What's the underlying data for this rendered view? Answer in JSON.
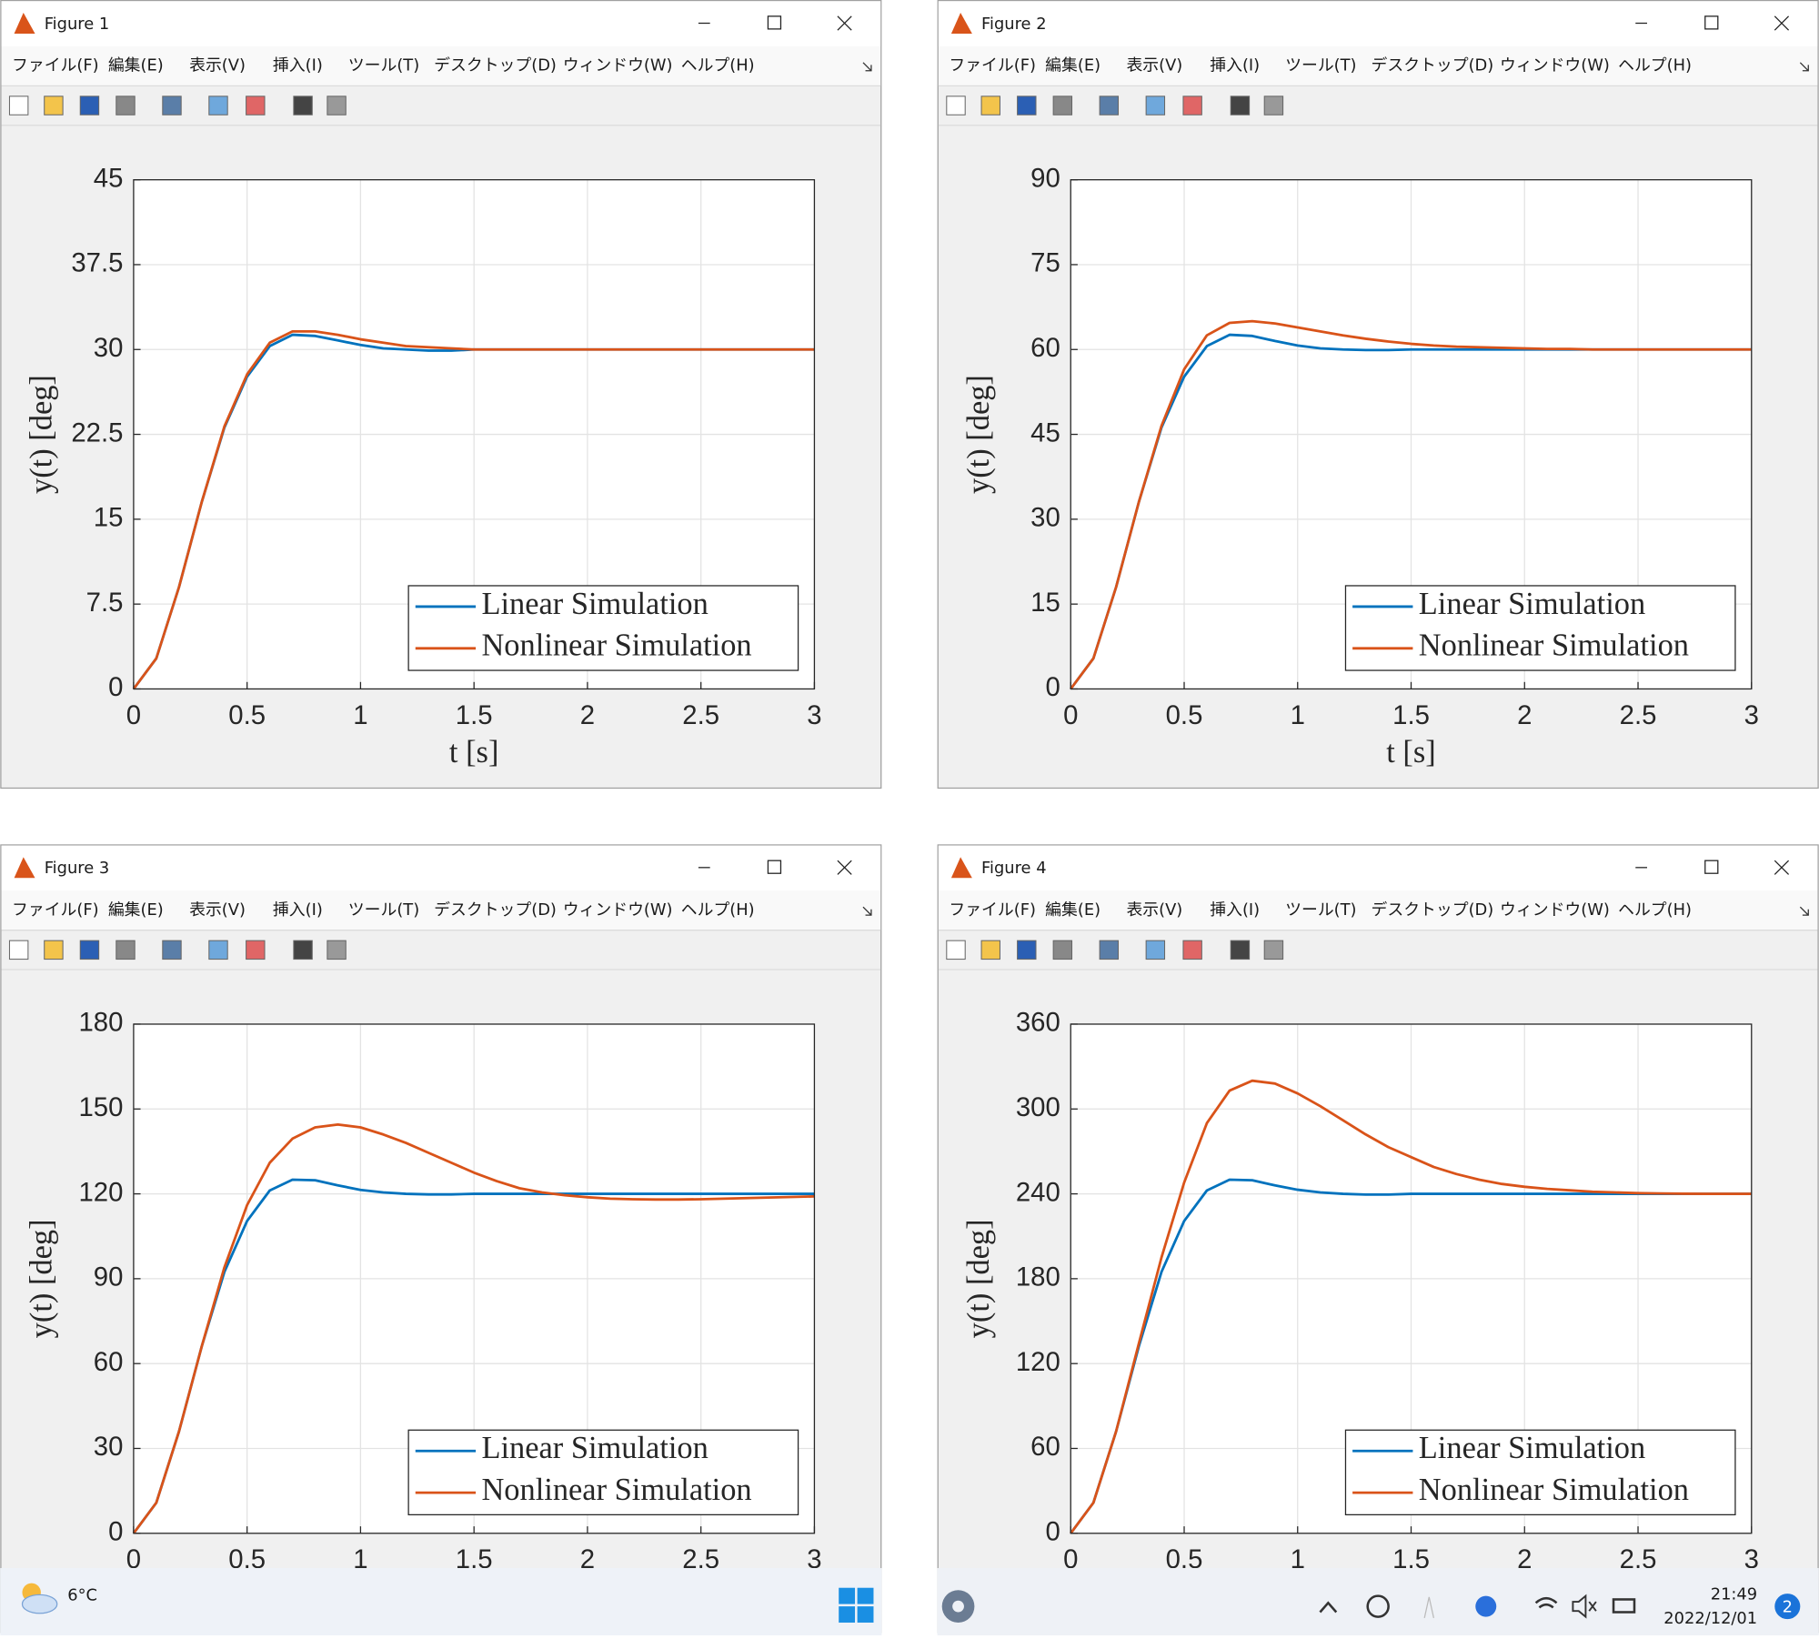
{
  "windows": [
    {
      "title": "Figure 1"
    },
    {
      "title": "Figure 2"
    },
    {
      "title": "Figure 3"
    },
    {
      "title": "Figure 4"
    }
  ],
  "menu": [
    "ファイル(F)",
    "編集(E)",
    "表示(V)",
    "挿入(I)",
    "ツール(T)",
    "デスクトップ(D)",
    "ウィンドウ(W)",
    "ヘルプ(H)"
  ],
  "chart_data": [
    {
      "type": "line",
      "xlabel": "t [s]",
      "ylabel": "y(t) [deg]",
      "x": [
        0,
        0.1,
        0.2,
        0.3,
        0.4,
        0.5,
        0.6,
        0.7,
        0.8,
        0.9,
        1,
        1.1,
        1.2,
        1.3,
        1.4,
        1.5,
        1.6,
        1.7,
        1.8,
        1.9,
        2,
        2.1,
        2.2,
        2.3,
        2.4,
        2.5,
        2.6,
        2.7,
        2.8,
        2.9,
        3
      ],
      "series": [
        {
          "name": "Linear Simulation",
          "color": "#0072bd",
          "values": [
            0,
            2.7,
            9,
            16.5,
            23.1,
            27.6,
            30.3,
            31.3,
            31.2,
            30.8,
            30.4,
            30.1,
            30,
            29.9,
            29.9,
            30,
            30,
            30,
            30,
            30,
            30,
            30,
            30,
            30,
            30,
            30,
            30,
            30,
            30,
            30,
            30
          ]
        },
        {
          "name": "Nonlinear Simulation",
          "color": "#d95319",
          "values": [
            0,
            2.7,
            9,
            16.5,
            23.2,
            27.8,
            30.6,
            31.6,
            31.6,
            31.3,
            30.9,
            30.6,
            30.3,
            30.2,
            30.1,
            30,
            30,
            30,
            30,
            30,
            30,
            30,
            30,
            30,
            30,
            30,
            30,
            30,
            30,
            30,
            30
          ]
        }
      ],
      "xlim": [
        0,
        3
      ],
      "ylim": [
        0,
        45
      ],
      "xticks": [
        0,
        0.5,
        1,
        1.5,
        2,
        2.5,
        3
      ],
      "yticks": [
        0,
        7.5,
        15,
        22.5,
        30,
        37.5,
        45
      ],
      "grid": true,
      "legend": "lower right"
    },
    {
      "type": "line",
      "xlabel": "t [s]",
      "ylabel": "y(t) [deg]",
      "x": [
        0,
        0.1,
        0.2,
        0.3,
        0.4,
        0.5,
        0.6,
        0.7,
        0.8,
        0.9,
        1,
        1.1,
        1.2,
        1.3,
        1.4,
        1.5,
        1.6,
        1.7,
        1.8,
        1.9,
        2,
        2.1,
        2.2,
        2.3,
        2.4,
        2.5,
        2.6,
        2.7,
        2.8,
        2.9,
        3
      ],
      "series": [
        {
          "name": "Linear Simulation",
          "color": "#0072bd",
          "values": [
            0,
            5.4,
            18,
            33,
            46.2,
            55.2,
            60.6,
            62.6,
            62.4,
            61.5,
            60.7,
            60.2,
            60,
            59.9,
            59.9,
            60,
            60,
            60,
            60,
            60,
            60,
            60,
            60,
            60,
            60,
            60,
            60,
            60,
            60,
            60,
            60
          ]
        },
        {
          "name": "Nonlinear Simulation",
          "color": "#d95319",
          "values": [
            0,
            5.4,
            18,
            33,
            46.5,
            56.5,
            62.5,
            64.7,
            65,
            64.6,
            63.9,
            63.2,
            62.5,
            61.9,
            61.4,
            61,
            60.7,
            60.5,
            60.4,
            60.3,
            60.2,
            60.1,
            60.1,
            60,
            60,
            60,
            60,
            60,
            60,
            60,
            60
          ]
        }
      ],
      "xlim": [
        0,
        3
      ],
      "ylim": [
        0,
        90
      ],
      "xticks": [
        0,
        0.5,
        1,
        1.5,
        2,
        2.5,
        3
      ],
      "yticks": [
        0,
        15,
        30,
        45,
        60,
        75,
        90
      ],
      "grid": true,
      "legend": "lower right"
    },
    {
      "type": "line",
      "ylabel": "y(t) [deg]",
      "x": [
        0,
        0.1,
        0.2,
        0.3,
        0.4,
        0.5,
        0.6,
        0.7,
        0.8,
        0.9,
        1,
        1.1,
        1.2,
        1.3,
        1.4,
        1.5,
        1.6,
        1.7,
        1.8,
        1.9,
        2,
        2.1,
        2.2,
        2.3,
        2.4,
        2.5,
        2.6,
        2.7,
        2.8,
        2.9,
        3
      ],
      "series": [
        {
          "name": "Linear Simulation",
          "color": "#0072bd",
          "values": [
            0,
            10.8,
            36,
            66,
            92.4,
            110.4,
            121.2,
            125,
            124.8,
            123,
            121.4,
            120.5,
            120,
            119.8,
            119.8,
            120,
            120,
            120,
            120,
            120,
            120,
            120,
            120,
            120,
            120,
            120,
            120,
            120,
            120,
            120,
            120
          ]
        },
        {
          "name": "Nonlinear Simulation",
          "color": "#d95319",
          "values": [
            0,
            10.8,
            36,
            66,
            94,
            116,
            131,
            139.5,
            143.5,
            144.5,
            143.5,
            141,
            138,
            134.5,
            131,
            127.5,
            124.5,
            122,
            120.5,
            119.5,
            118.8,
            118.3,
            118.1,
            118,
            118,
            118.1,
            118.3,
            118.5,
            118.7,
            118.9,
            119.1
          ]
        }
      ],
      "xlim": [
        0,
        3
      ],
      "ylim": [
        0,
        180
      ],
      "xticks": [
        0,
        0.5,
        1,
        1.5,
        2,
        2.5,
        3
      ],
      "yticks": [
        0,
        30,
        60,
        90,
        120,
        150,
        180
      ],
      "grid": true,
      "legend": "lower right"
    },
    {
      "type": "line",
      "ylabel": "y(t) [deg]",
      "x": [
        0,
        0.1,
        0.2,
        0.3,
        0.4,
        0.5,
        0.6,
        0.7,
        0.8,
        0.9,
        1,
        1.1,
        1.2,
        1.3,
        1.4,
        1.5,
        1.6,
        1.7,
        1.8,
        1.9,
        2,
        2.1,
        2.2,
        2.3,
        2.4,
        2.5,
        2.6,
        2.7,
        2.8,
        2.9,
        3
      ],
      "series": [
        {
          "name": "Linear Simulation",
          "color": "#0072bd",
          "values": [
            0,
            21.6,
            72,
            132,
            184.8,
            220.8,
            242.4,
            250,
            249.6,
            246,
            242.9,
            241,
            240,
            239.5,
            239.5,
            240,
            240,
            240,
            240,
            240,
            240,
            240,
            240,
            240,
            240,
            240,
            240,
            240,
            240,
            240,
            240
          ]
        },
        {
          "name": "Nonlinear Simulation",
          "color": "#d95319",
          "values": [
            0,
            21.6,
            72,
            134,
            195,
            248,
            290,
            313,
            320,
            318,
            311,
            302,
            292,
            282,
            273,
            266,
            259,
            254,
            250,
            247,
            245,
            243.5,
            242.5,
            241.5,
            241,
            240.5,
            240.3,
            240.1,
            240,
            240,
            240
          ]
        }
      ],
      "xlim": [
        0,
        3
      ],
      "ylim": [
        0,
        360
      ],
      "xticks": [
        0,
        0.5,
        1,
        1.5,
        2,
        2.5,
        3
      ],
      "yticks": [
        0,
        60,
        120,
        180,
        240,
        300,
        360
      ],
      "grid": true,
      "legend": "lower right"
    }
  ],
  "taskbar": {
    "temperature": "6°C",
    "time": "21:49",
    "date": "2022/12/01",
    "notifications": "2"
  }
}
